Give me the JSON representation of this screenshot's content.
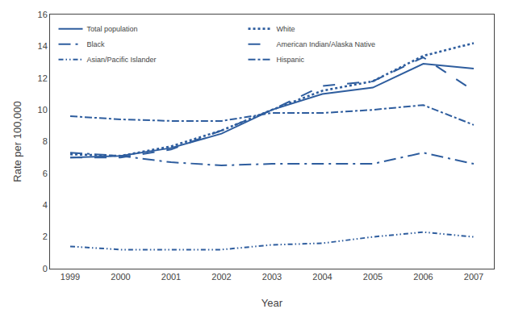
{
  "chart_data": {
    "type": "line",
    "x": [
      1999,
      2000,
      2001,
      2002,
      2003,
      2004,
      2005,
      2006,
      2007
    ],
    "series": [
      {
        "name": "Total population",
        "line_style": "solid",
        "values": [
          7.0,
          7.1,
          7.6,
          8.5,
          10.0,
          11.0,
          11.4,
          12.9,
          12.6
        ]
      },
      {
        "name": "White",
        "line_style": "dotted",
        "values": [
          7.2,
          7.1,
          7.7,
          8.7,
          10.0,
          11.2,
          11.8,
          13.4,
          14.2
        ]
      },
      {
        "name": "Black",
        "line_style": "longdashdot",
        "values": [
          7.3,
          7.1,
          6.7,
          6.5,
          6.6,
          6.6,
          6.6,
          7.3,
          6.6
        ]
      },
      {
        "name": "American Indian/Alaska Native",
        "line_style": "longdash",
        "values": [
          7.0,
          7.0,
          7.5,
          8.7,
          10.0,
          11.5,
          11.8,
          13.3,
          11.2
        ]
      },
      {
        "name": "Asian/Pacific Islander",
        "line_style": "dashdotdot",
        "values": [
          1.4,
          1.2,
          1.2,
          1.2,
          1.5,
          1.6,
          2.0,
          2.3,
          2.0
        ]
      },
      {
        "name": "Hispanic",
        "line_style": "dashdot",
        "values": [
          9.6,
          9.4,
          9.3,
          9.3,
          9.8,
          9.8,
          10.0,
          10.3,
          9.05
        ]
      }
    ],
    "color": "#2E5D9E",
    "xlim": [
      1998.6,
      2007.4
    ],
    "xticks": [
      1999,
      2000,
      2001,
      2002,
      2003,
      2004,
      2005,
      2006,
      2007
    ],
    "ylim": [
      0,
      16
    ],
    "yticks": [
      0,
      2,
      4,
      6,
      8,
      10,
      12,
      14,
      16
    ],
    "xlabel": "Year",
    "ylabel": "Rate per 100,000",
    "grid": false,
    "legend": "upper left"
  }
}
